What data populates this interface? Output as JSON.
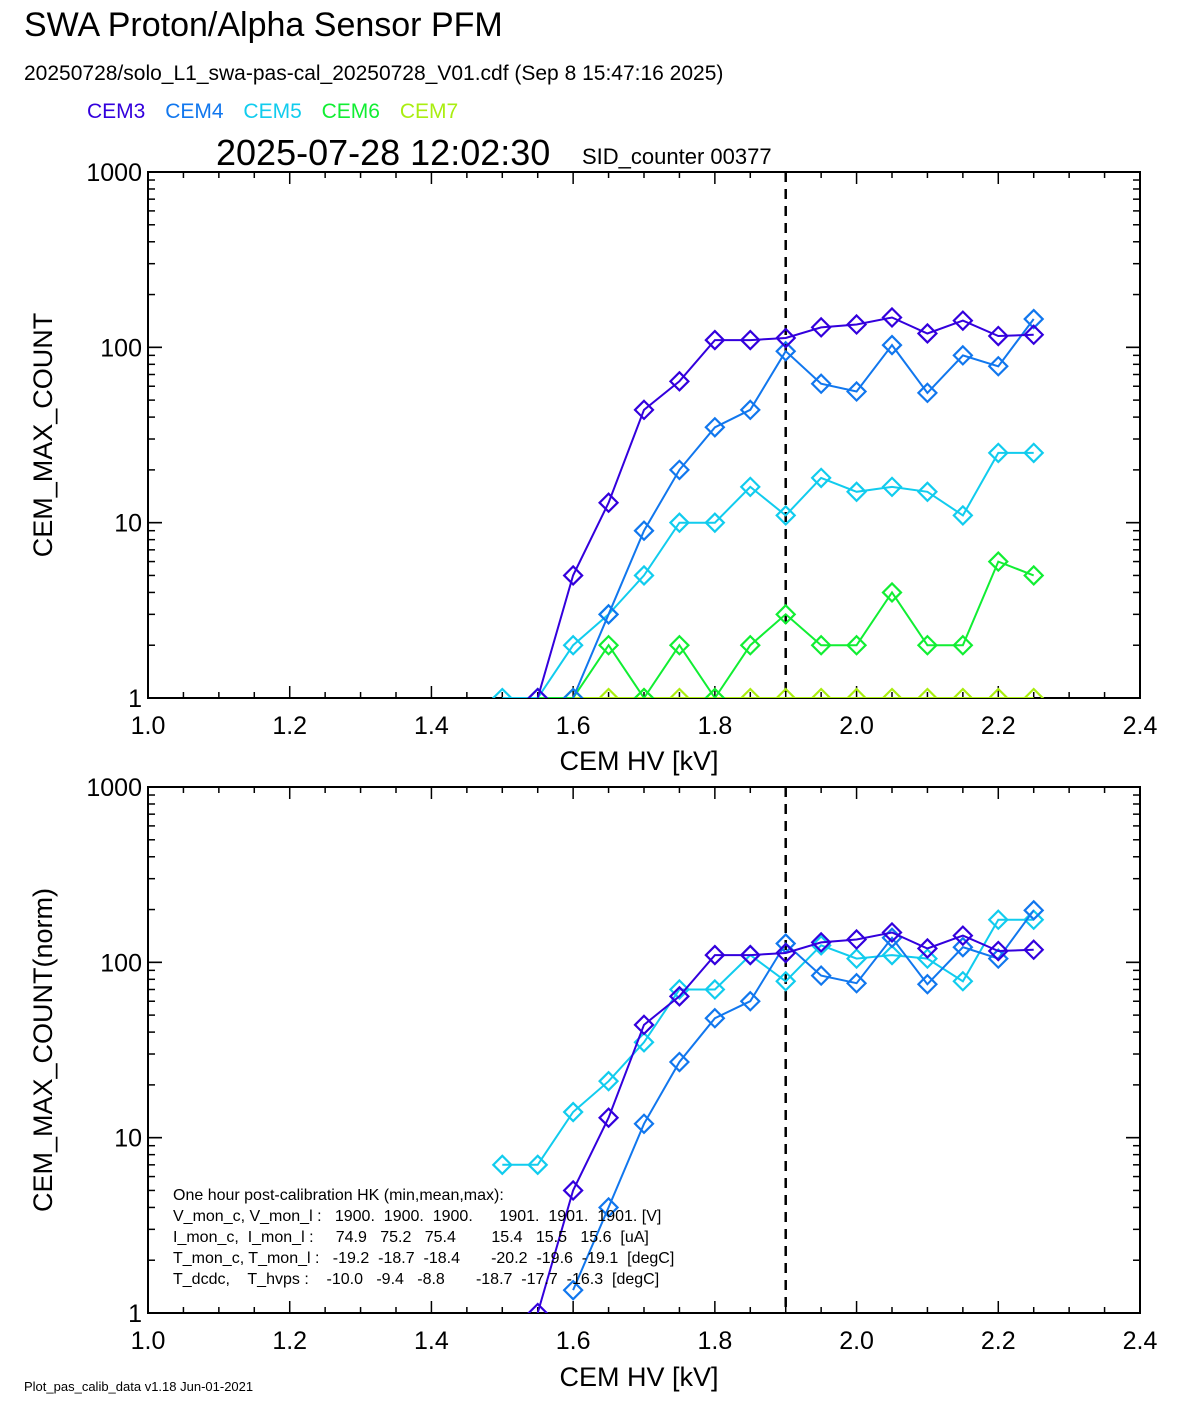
{
  "header": {
    "title": "SWA Proton/Alpha Sensor PFM",
    "subtitle": "20250728/solo_L1_swa-pas-cal_20250728_V01.cdf  (Sep  8 15:47:16 2025)",
    "timestamp": "2025-07-28 12:02:30",
    "sid": "SID_counter 00377"
  },
  "legend": [
    {
      "name": "CEM3",
      "color": "#3300dd"
    },
    {
      "name": "CEM4",
      "color": "#1177ee"
    },
    {
      "name": "CEM5",
      "color": "#11ccee"
    },
    {
      "name": "CEM6",
      "color": "#11ee33"
    },
    {
      "name": "CEM7",
      "color": "#aaee11"
    }
  ],
  "hk": {
    "title": "One hour post-calibration HK (min,mean,max):",
    "lines": [
      "V_mon_c, V_mon_l :   1900.  1900.  1900.      1901.  1901.  1901. [V]",
      "I_mon_c,  I_mon_l :     74.9   75.2   75.4        15.4   15.5   15.6  [uA]",
      "T_mon_c, T_mon_l :   -19.2  -18.7  -18.4       -20.2  -19.6  -19.1  [degC]",
      "T_dcdc,    T_hvps :    -10.0   -9.4   -8.8       -18.7  -17.7  -16.3  [degC]"
    ]
  },
  "footer": "Plot_pas_calib_data v1.18 Jun-01-2021",
  "chart_data": [
    {
      "type": "line",
      "ylabel": "CEM_MAX_COUNT",
      "xlabel": "CEM HV [kV]",
      "xlim": [
        1.0,
        2.4
      ],
      "ylim": [
        1,
        1000
      ],
      "yscale": "log",
      "xticks": [
        "1.0",
        "1.2",
        "1.4",
        "1.6",
        "1.8",
        "2.0",
        "2.2",
        "2.4"
      ],
      "yticks": [
        "1",
        "10",
        "100",
        "1000"
      ],
      "vline": 1.9,
      "series": [
        {
          "name": "CEM3",
          "color": "#3300dd",
          "x": [
            1.55,
            1.6,
            1.65,
            1.7,
            1.75,
            1.8,
            1.85,
            1.9,
            1.95,
            2.0,
            2.05,
            2.1,
            2.15,
            2.2,
            2.25
          ],
          "y": [
            1,
            5,
            13,
            44,
            64,
            110,
            110,
            113,
            130,
            135,
            148,
            120,
            142,
            116,
            118
          ]
        },
        {
          "name": "CEM4",
          "color": "#1177ee",
          "x": [
            1.6,
            1.65,
            1.7,
            1.75,
            1.8,
            1.85,
            1.9,
            1.95,
            2.0,
            2.05,
            2.1,
            2.15,
            2.2,
            2.25
          ],
          "y": [
            1,
            3,
            9,
            20,
            35,
            44,
            95,
            62,
            56,
            103,
            55,
            90,
            78,
            145
          ]
        },
        {
          "name": "CEM5",
          "color": "#11ccee",
          "x": [
            1.5,
            1.55,
            1.6,
            1.65,
            1.7,
            1.75,
            1.8,
            1.85,
            1.9,
            1.95,
            2.0,
            2.05,
            2.1,
            2.15,
            2.2,
            2.25
          ],
          "y": [
            1,
            1,
            2,
            3,
            5,
            10,
            10,
            16,
            11,
            18,
            15,
            16,
            15,
            11,
            25,
            25
          ]
        },
        {
          "name": "CEM6",
          "color": "#11ee33",
          "x": [
            1.55,
            1.6,
            1.65,
            1.7,
            1.75,
            1.8,
            1.85,
            1.9,
            1.95,
            2.0,
            2.05,
            2.1,
            2.15,
            2.2,
            2.25
          ],
          "y": [
            1,
            1,
            2,
            1,
            2,
            1,
            2,
            3,
            2,
            2,
            4,
            2,
            2,
            6,
            5
          ]
        },
        {
          "name": "CEM7",
          "color": "#aaee11",
          "x": [
            1.6,
            1.65,
            1.7,
            1.75,
            1.8,
            1.85,
            1.9,
            1.95,
            2.0,
            2.05,
            2.1,
            2.15,
            2.2,
            2.25
          ],
          "y": [
            1,
            1,
            1,
            1,
            1,
            1,
            1,
            1,
            1,
            1,
            1,
            1,
            1,
            1
          ]
        }
      ]
    },
    {
      "type": "line",
      "ylabel": "CEM_MAX_COUNT(norm)",
      "xlabel": "CEM HV [kV]",
      "xlim": [
        1.0,
        2.4
      ],
      "ylim": [
        1,
        1000
      ],
      "yscale": "log",
      "xticks": [
        "1.0",
        "1.2",
        "1.4",
        "1.6",
        "1.8",
        "2.0",
        "2.2",
        "2.4"
      ],
      "yticks": [
        "1",
        "10",
        "100",
        "1000"
      ],
      "vline": 1.9,
      "series": [
        {
          "name": "CEM3",
          "color": "#3300dd",
          "x": [
            1.55,
            1.6,
            1.65,
            1.7,
            1.75,
            1.8,
            1.85,
            1.9,
            1.95,
            2.0,
            2.05,
            2.1,
            2.15,
            2.2,
            2.25
          ],
          "y": [
            1,
            5,
            13,
            44,
            64,
            110,
            110,
            113,
            130,
            135,
            148,
            120,
            142,
            116,
            118
          ]
        },
        {
          "name": "CEM4",
          "color": "#1177ee",
          "x": [
            1.6,
            1.65,
            1.7,
            1.75,
            1.8,
            1.85,
            1.9,
            1.95,
            2.0,
            2.05,
            2.1,
            2.15,
            2.2,
            2.25
          ],
          "y": [
            1.35,
            4,
            12,
            27,
            48,
            60,
            128,
            84,
            76,
            138,
            75,
            122,
            105,
            198
          ]
        },
        {
          "name": "CEM5",
          "color": "#11ccee",
          "x": [
            1.5,
            1.55,
            1.6,
            1.65,
            1.7,
            1.75,
            1.8,
            1.85,
            1.9,
            1.95,
            2.0,
            2.05,
            2.1,
            2.15,
            2.2,
            2.25
          ],
          "y": [
            7,
            7,
            14,
            21,
            35,
            70,
            70,
            110,
            78,
            125,
            105,
            110,
            105,
            78,
            175,
            175
          ]
        }
      ]
    }
  ]
}
